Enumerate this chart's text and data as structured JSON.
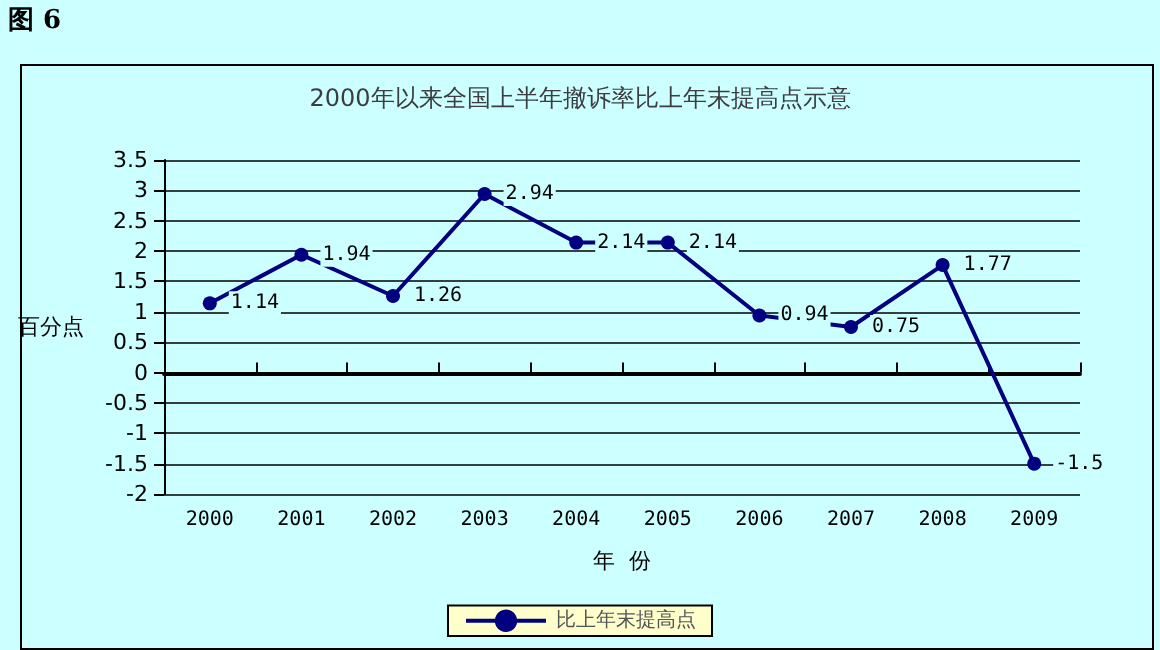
{
  "chart_data": {
    "type": "line",
    "title": "2000年以来全国上半年撤诉率比上年末提高点示意",
    "xlabel": "年  份",
    "ylabel": "百分点",
    "annotations": [
      "图 6"
    ],
    "categories": [
      "2000",
      "2001",
      "2002",
      "2003",
      "2004",
      "2005",
      "2006",
      "2007",
      "2008",
      "2009"
    ],
    "series": [
      {
        "name": "比上年末提高点",
        "color": "#000080",
        "values": [
          1.14,
          1.94,
          1.26,
          2.94,
          2.14,
          2.14,
          0.94,
          0.75,
          1.77,
          -1.5
        ]
      }
    ],
    "ylim": [
      -2,
      3.5
    ],
    "yticks": [
      -2,
      -1.5,
      -1,
      -0.5,
      0,
      0.5,
      1,
      1.5,
      2,
      2.5,
      3,
      3.5
    ],
    "grid": "y",
    "legend": "bottom",
    "marker": "circle",
    "data_labels": true
  }
}
